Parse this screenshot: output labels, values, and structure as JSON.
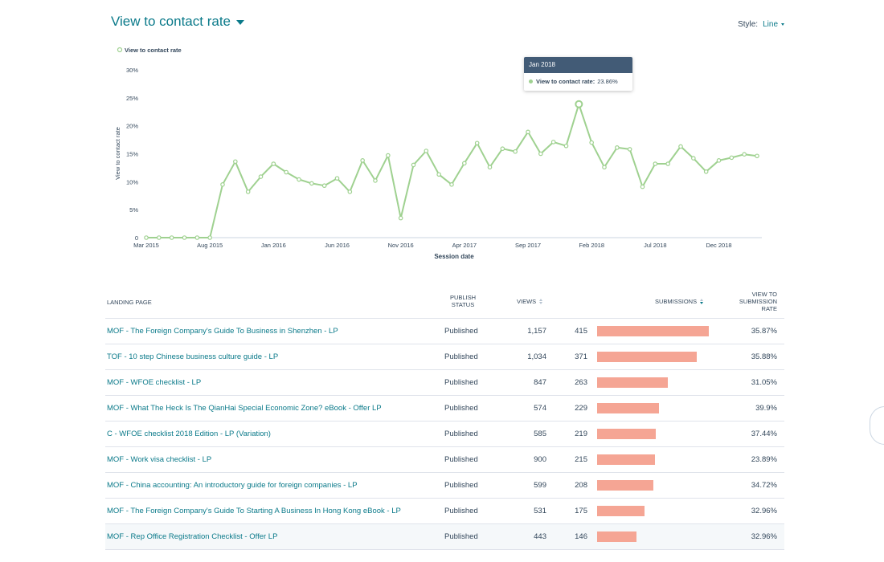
{
  "header": {
    "title": "View to contact rate",
    "style_label": "Style:",
    "style_value": "Line"
  },
  "chart_data": {
    "type": "line",
    "title": "",
    "xlabel": "Session date",
    "ylabel": "View to contact rate",
    "ylim": [
      0,
      30
    ],
    "y_ticks": [
      "0",
      "5%",
      "10%",
      "15%",
      "20%",
      "25%",
      "30%"
    ],
    "x_ticks": [
      "Mar 2015",
      "Aug 2015",
      "Jan 2016",
      "Jun 2016",
      "Nov 2016",
      "Apr 2017",
      "Sep 2017",
      "Feb 2018",
      "Jul 2018",
      "Dec 2018"
    ],
    "grid": false,
    "legend": "top-left",
    "series": [
      {
        "name": "View to contact rate",
        "color": "#9fd190",
        "x": [
          "Mar 2015",
          "Apr 2015",
          "May 2015",
          "Jun 2015",
          "Jul 2015",
          "Aug 2015",
          "Sep 2015",
          "Oct 2015",
          "Nov 2015",
          "Dec 2015",
          "Jan 2016",
          "Feb 2016",
          "Mar 2016",
          "Apr 2016",
          "May 2016",
          "Jun 2016",
          "Jul 2016",
          "Aug 2016",
          "Sep 2016",
          "Oct 2016",
          "Nov 2016",
          "Dec 2016",
          "Jan 2017",
          "Feb 2017",
          "Mar 2017",
          "Apr 2017",
          "May 2017",
          "Jun 2017",
          "Jul 2017",
          "Aug 2017",
          "Sep 2017",
          "Oct 2017",
          "Nov 2017",
          "Dec 2017",
          "Jan 2018",
          "Feb 2018",
          "Mar 2018",
          "Apr 2018",
          "May 2018",
          "Jun 2018",
          "Jul 2018",
          "Aug 2018",
          "Sep 2018",
          "Oct 2018",
          "Nov 2018",
          "Dec 2018",
          "Jan 2019",
          "Feb 2019",
          "Mar 2019"
        ],
        "values": [
          0,
          0,
          0,
          0,
          0,
          0,
          9.5,
          13.6,
          8.2,
          10.9,
          13.2,
          11.7,
          10.4,
          9.7,
          9.3,
          10.6,
          8.2,
          13.8,
          10.2,
          14.7,
          3.5,
          13.0,
          15.5,
          11.3,
          9.5,
          13.3,
          16.9,
          12.6,
          15.9,
          15.4,
          18.9,
          15.0,
          17.1,
          16.4,
          23.86,
          17.0,
          12.6,
          16.1,
          15.8,
          9.1,
          13.2,
          13.2,
          16.3,
          14.2,
          11.8,
          13.8,
          14.3,
          14.9,
          14.6
        ]
      }
    ],
    "tooltip": {
      "month": "Jan 2018",
      "label": "View to contact rate:",
      "value": "23.86%"
    }
  },
  "table": {
    "headers": {
      "landing_page": "LANDING PAGE",
      "publish_status": "PUBLISH STATUS",
      "views": "VIEWS",
      "submissions": "SUBMISSIONS",
      "rate": "VIEW TO SUBMISSION RATE"
    },
    "bar_color": "#f5a594",
    "rows": [
      {
        "name": "MOF - The Foreign Company's Guide To Business in Shenzhen - LP",
        "status": "Published",
        "views": "1,157",
        "submissions": 415,
        "rate": "35.87%"
      },
      {
        "name": "TOF - 10 step Chinese business culture guide - LP",
        "status": "Published",
        "views": "1,034",
        "submissions": 371,
        "rate": "35.88%"
      },
      {
        "name": "MOF - WFOE checklist - LP",
        "status": "Published",
        "views": "847",
        "submissions": 263,
        "rate": "31.05%"
      },
      {
        "name": "MOF - What The Heck Is The QianHai Special Economic Zone? eBook - Offer LP",
        "status": "Published",
        "views": "574",
        "submissions": 229,
        "rate": "39.9%"
      },
      {
        "name": "C - WFOE checklist 2018 Edition - LP (Variation)",
        "status": "Published",
        "views": "585",
        "submissions": 219,
        "rate": "37.44%"
      },
      {
        "name": "MOF - Work visa checklist - LP",
        "status": "Published",
        "views": "900",
        "submissions": 215,
        "rate": "23.89%"
      },
      {
        "name": "MOF - China accounting: An introductory guide for foreign companies - LP",
        "status": "Published",
        "views": "599",
        "submissions": 208,
        "rate": "34.72%"
      },
      {
        "name": "MOF - The Foreign Company's Guide To Starting A Business In Hong Kong eBook - LP",
        "status": "Published",
        "views": "531",
        "submissions": 175,
        "rate": "32.96%"
      },
      {
        "name": "MOF - Rep Office Registration Checklist - Offer LP",
        "status": "Published",
        "views": "443",
        "submissions": 146,
        "rate": "32.96%"
      }
    ]
  }
}
